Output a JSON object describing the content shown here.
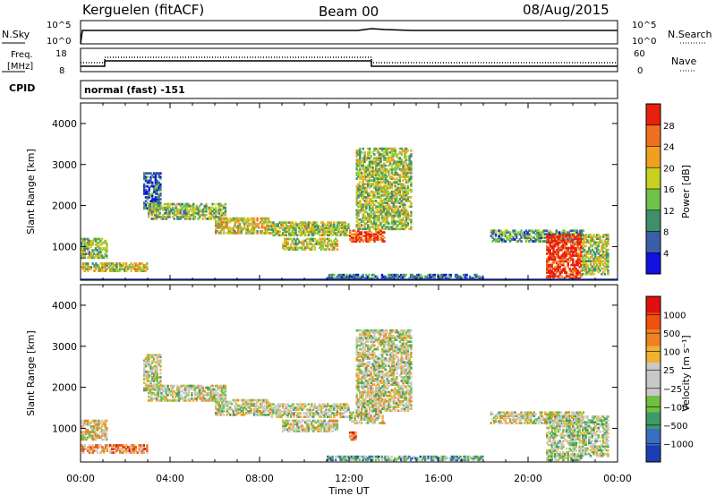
{
  "header": {
    "station": "Kerguelen (fitACF)",
    "beam": "Beam 00",
    "date": "08/Aug/2015"
  },
  "top_panels": {
    "nsky_label": "N.Sky",
    "nsearch_label": "N.Search",
    "nsky_ticks": [
      "10^5",
      "10^0"
    ],
    "nsearch_ticks": [
      "10^5",
      "10^0"
    ],
    "freq_label": "Freq.",
    "freq_unit": "[MHz]",
    "freq_ticks": [
      "18",
      "8"
    ],
    "nave_label": "Nave",
    "nave_ticks": [
      "60",
      "0"
    ],
    "cpid_label": "CPID",
    "cpid_value": "normal (fast) -151"
  },
  "chart_data": [
    {
      "type": "heatmap",
      "name": "power",
      "ylabel": "Slant Range [km]",
      "ylim": [
        180,
        4500
      ],
      "yticks": [
        1000,
        2000,
        3000,
        4000
      ],
      "xlim": [
        0,
        24
      ],
      "xticks": [
        "00:00",
        "04:00",
        "08:00",
        "12:00",
        "16:00",
        "20:00",
        "00:00"
      ],
      "colorbar_label": "Power [dB]",
      "colorbar_ticks": [
        "28",
        "24",
        "20",
        "16",
        "12",
        "8",
        "4"
      ],
      "colors": [
        "#1010e0",
        "#3a5fa8",
        "#3f8f6a",
        "#6fc24a",
        "#c8d020",
        "#f0a020",
        "#f07020",
        "#e82010"
      ],
      "echo_bands": [
        {
          "t0": 0.0,
          "t1": 1.2,
          "r0": 700,
          "r1": 1200,
          "level": 0.45
        },
        {
          "t0": 0.0,
          "t1": 3.0,
          "r0": 380,
          "r1": 600,
          "level": 0.55
        },
        {
          "t0": 2.8,
          "t1": 3.6,
          "r0": 1900,
          "r1": 2800,
          "level": 0.2
        },
        {
          "t0": 3.0,
          "t1": 6.5,
          "r0": 1650,
          "r1": 2050,
          "level": 0.45
        },
        {
          "t0": 6.0,
          "t1": 8.5,
          "r0": 1300,
          "r1": 1700,
          "level": 0.6
        },
        {
          "t0": 8.5,
          "t1": 12.0,
          "r0": 1250,
          "r1": 1600,
          "level": 0.5
        },
        {
          "t0": 9.0,
          "t1": 11.5,
          "r0": 900,
          "r1": 1200,
          "level": 0.55
        },
        {
          "t0": 12.0,
          "t1": 13.6,
          "r0": 1100,
          "r1": 1400,
          "level": 0.9
        },
        {
          "t0": 12.3,
          "t1": 14.8,
          "r0": 1400,
          "r1": 3400,
          "level": 0.5
        },
        {
          "t0": 11.0,
          "t1": 18.0,
          "r0": 200,
          "r1": 320,
          "level": 0.25
        },
        {
          "t0": 18.3,
          "t1": 22.5,
          "r0": 1100,
          "r1": 1400,
          "level": 0.35
        },
        {
          "t0": 20.8,
          "t1": 22.4,
          "r0": 200,
          "r1": 1300,
          "level": 0.95
        },
        {
          "t0": 22.4,
          "t1": 23.6,
          "r0": 300,
          "r1": 1300,
          "level": 0.5
        }
      ]
    },
    {
      "type": "heatmap",
      "name": "velocity",
      "ylabel": "Slant Range [km]",
      "ylim": [
        180,
        4500
      ],
      "yticks": [
        1000,
        2000,
        3000,
        4000
      ],
      "xlim": [
        0,
        24
      ],
      "xlabel": "Time UT",
      "xticks": [
        "00:00",
        "04:00",
        "08:00",
        "12:00",
        "16:00",
        "20:00",
        "00:00"
      ],
      "colorbar_label": "Velocity [m s⁻¹]",
      "colorbar_ticks": [
        "1000",
        "500",
        "100",
        "25",
        "−25",
        "−100",
        "−500",
        "−1000"
      ],
      "colors": [
        "#1e3cb4",
        "#3a6fc0",
        "#3f9a6a",
        "#70c040",
        "#c8c8c8",
        "#c8c8c8",
        "#f0b030",
        "#f08020",
        "#f05010",
        "#e01010"
      ],
      "echo_bands": [
        {
          "t0": 0.0,
          "t1": 1.2,
          "r0": 700,
          "r1": 1200,
          "level": 0.55
        },
        {
          "t0": 0.0,
          "t1": 3.0,
          "r0": 380,
          "r1": 600,
          "level": 0.7
        },
        {
          "t0": 2.8,
          "t1": 3.6,
          "r0": 1900,
          "r1": 2800,
          "level": 0.5
        },
        {
          "t0": 3.0,
          "t1": 6.5,
          "r0": 1650,
          "r1": 2050,
          "level": 0.5
        },
        {
          "t0": 6.0,
          "t1": 8.5,
          "r0": 1300,
          "r1": 1700,
          "level": 0.5
        },
        {
          "t0": 8.5,
          "t1": 12.0,
          "r0": 1250,
          "r1": 1600,
          "level": 0.5
        },
        {
          "t0": 9.0,
          "t1": 11.5,
          "r0": 900,
          "r1": 1200,
          "level": 0.5
        },
        {
          "t0": 12.0,
          "t1": 13.6,
          "r0": 1100,
          "r1": 1400,
          "level": 0.5
        },
        {
          "t0": 12.3,
          "t1": 14.8,
          "r0": 1400,
          "r1": 3400,
          "level": 0.5
        },
        {
          "t0": 11.0,
          "t1": 18.0,
          "r0": 200,
          "r1": 320,
          "level": 0.3
        },
        {
          "t0": 18.3,
          "t1": 22.5,
          "r0": 1100,
          "r1": 1400,
          "level": 0.5
        },
        {
          "t0": 20.8,
          "t1": 22.4,
          "r0": 200,
          "r1": 1300,
          "level": 0.45
        },
        {
          "t0": 22.4,
          "t1": 23.6,
          "r0": 300,
          "r1": 1300,
          "level": 0.45
        },
        {
          "t0": 12.0,
          "t1": 12.3,
          "r0": 700,
          "r1": 950,
          "level": 0.8
        }
      ]
    }
  ]
}
